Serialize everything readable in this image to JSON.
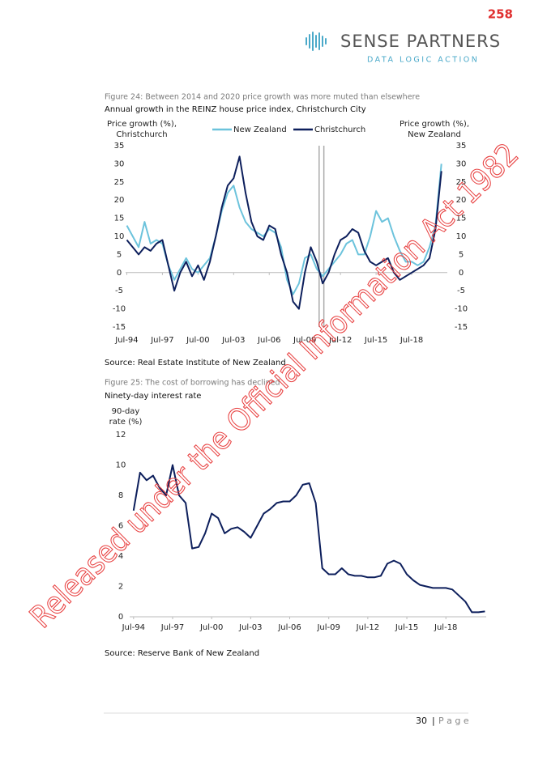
{
  "stamp": "258",
  "logo": {
    "name": "SENSE PARTNERS",
    "tagline": "DATA LOGIC ACTION"
  },
  "watermark": "Released under the Official Information Act 1982",
  "footer": {
    "page": "30",
    "label": "P a g e"
  },
  "chart_data": [
    {
      "type": "line",
      "title": "Figure 24: Between 2014 and 2020 price growth was more muted than elsewhere",
      "subtitle": "Annual growth in the REINZ house price index, Christchurch City",
      "ylabel": [
        "Price growth (%),",
        "Christchurch"
      ],
      "y2label": [
        "Price growth (%),",
        "New Zealand"
      ],
      "source": "Source: Real Estate Institute of New Zealand",
      "xlim": [
        1994.4,
        2021.5
      ],
      "xticks": [
        {
          "value": 1994.5,
          "label": "Jul-94"
        },
        {
          "value": 1997.5,
          "label": "Jul-97"
        },
        {
          "value": 2000.5,
          "label": "Jul-00"
        },
        {
          "value": 2003.5,
          "label": "Jul-03"
        },
        {
          "value": 2006.5,
          "label": "Jul-06"
        },
        {
          "value": 2009.5,
          "label": "Jul-09"
        },
        {
          "value": 2012.5,
          "label": "Jul-12"
        },
        {
          "value": 2015.5,
          "label": "Jul-15"
        },
        {
          "value": 2018.5,
          "label": "Jul-18"
        }
      ],
      "ylim": [
        -15,
        35
      ],
      "yticks": [
        -15,
        -10,
        -5,
        0,
        5,
        10,
        15,
        20,
        25,
        30,
        35
      ],
      "y2lim": [
        -15,
        35
      ],
      "y2ticks": [
        -15,
        -10,
        -5,
        0,
        5,
        10,
        15,
        20,
        25,
        30,
        35
      ],
      "vlines": [
        2010.7,
        2011.1
      ],
      "x": [
        1994.5,
        1995,
        1995.5,
        1996,
        1996.5,
        1997,
        1997.5,
        1998,
        1998.5,
        1999,
        1999.5,
        2000,
        2000.5,
        2001,
        2001.5,
        2002,
        2002.5,
        2003,
        2003.5,
        2004,
        2004.5,
        2005,
        2005.5,
        2006,
        2006.5,
        2007,
        2007.5,
        2008,
        2008.5,
        2009,
        2009.5,
        2010,
        2010.5,
        2011,
        2011.5,
        2012,
        2012.5,
        2013,
        2013.5,
        2014,
        2014.5,
        2015,
        2015.5,
        2016,
        2016.5,
        2017,
        2017.5,
        2018,
        2018.5,
        2019,
        2019.5,
        2020,
        2020.5,
        2021
      ],
      "series": [
        {
          "name": "New Zealand",
          "color": "#6cc3dc",
          "values": [
            13,
            10,
            7,
            14,
            8,
            9,
            8,
            2,
            -2,
            1,
            4,
            1,
            0,
            2,
            4,
            10,
            17,
            22,
            24,
            18,
            14,
            12,
            11,
            10,
            12,
            11,
            7,
            -2,
            -6,
            -3,
            4,
            5,
            1,
            -1,
            1,
            3,
            5,
            8,
            9,
            5,
            5,
            10,
            17,
            14,
            15,
            10,
            6,
            3,
            3,
            2,
            3,
            7,
            13,
            30
          ]
        },
        {
          "name": "Christchurch",
          "color": "#0d1f5c",
          "values": [
            9,
            7,
            5,
            7,
            6,
            8,
            9,
            2,
            -5,
            0,
            3,
            -1,
            2,
            -2,
            3,
            10,
            18,
            24,
            26,
            32,
            22,
            14,
            10,
            9,
            13,
            12,
            5,
            0,
            -8,
            -10,
            0,
            7,
            3,
            -3,
            0,
            5,
            9,
            10,
            12,
            11,
            6,
            3,
            2,
            3,
            4,
            0,
            -2,
            -1,
            0,
            1,
            2,
            4,
            12,
            28
          ]
        }
      ]
    },
    {
      "type": "line",
      "title": "Figure 25: The cost of borrowing has declined",
      "subtitle": "Ninety-day interest rate",
      "ylabel": [
        "90-day",
        "rate (%)"
      ],
      "source": "Source: Reserve Bank of New Zealand",
      "xlim": [
        1994.2,
        2021.6
      ],
      "xticks": [
        {
          "value": 1994.5,
          "label": "Jul-94"
        },
        {
          "value": 1997.5,
          "label": "Jul-97"
        },
        {
          "value": 2000.5,
          "label": "Jul-00"
        },
        {
          "value": 2003.5,
          "label": "Jul-03"
        },
        {
          "value": 2006.5,
          "label": "Jul-06"
        },
        {
          "value": 2009.5,
          "label": "Jul-09"
        },
        {
          "value": 2012.5,
          "label": "Jul-12"
        },
        {
          "value": 2015.5,
          "label": "Jul-15"
        },
        {
          "value": 2018.5,
          "label": "Jul-18"
        }
      ],
      "ylim": [
        0,
        12
      ],
      "yticks": [
        0,
        2,
        4,
        6,
        8,
        10,
        12
      ],
      "x": [
        1994.5,
        1995,
        1995.5,
        1996,
        1996.5,
        1997,
        1997.5,
        1998,
        1998.5,
        1999,
        1999.5,
        2000,
        2000.5,
        2001,
        2001.5,
        2002,
        2002.5,
        2003,
        2003.5,
        2004,
        2004.5,
        2005,
        2005.5,
        2006,
        2006.5,
        2007,
        2007.5,
        2008,
        2008.5,
        2009,
        2009.5,
        2010,
        2010.5,
        2011,
        2011.5,
        2012,
        2012.5,
        2013,
        2013.5,
        2014,
        2014.5,
        2015,
        2015.5,
        2016,
        2016.5,
        2017,
        2017.5,
        2018,
        2018.5,
        2019,
        2019.5,
        2020,
        2020.5,
        2021,
        2021.5
      ],
      "series": [
        {
          "name": "90-day rate",
          "color": "#0d1f5c",
          "values": [
            7,
            9.5,
            9,
            9.3,
            8.5,
            8,
            10,
            8,
            7.5,
            4.5,
            4.6,
            5.5,
            6.8,
            6.5,
            5.5,
            5.8,
            5.9,
            5.6,
            5.2,
            6,
            6.8,
            7.1,
            7.5,
            7.6,
            7.6,
            8,
            8.7,
            8.8,
            7.5,
            3.2,
            2.8,
            2.8,
            3.2,
            2.8,
            2.7,
            2.7,
            2.6,
            2.6,
            2.7,
            3.5,
            3.7,
            3.5,
            2.8,
            2.4,
            2.1,
            2,
            1.9,
            1.9,
            1.9,
            1.8,
            1.4,
            1,
            0.3,
            0.3,
            0.35
          ]
        }
      ]
    }
  ]
}
